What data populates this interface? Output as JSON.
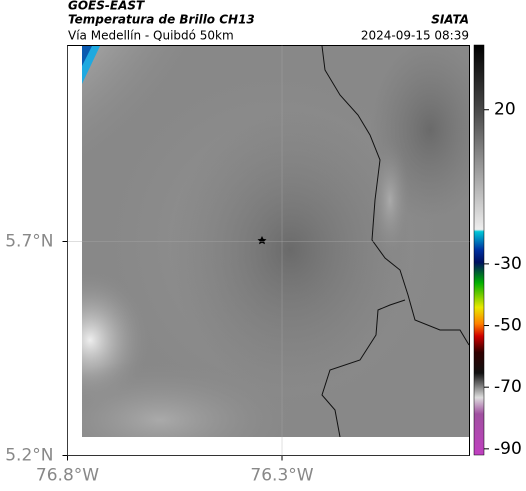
{
  "header": {
    "title": "GOES-EAST",
    "subtitle": "Temperatura de Brillo CH13",
    "route": "Vía Medellín - Quibdó 50km",
    "source": "SIATA",
    "timestamp": "2024-09-15 08:39"
  },
  "map": {
    "xlim": [
      -76.8,
      -75.863
    ],
    "ylim": [
      5.2,
      6.158
    ],
    "xticks": [
      {
        "value": -76.8,
        "label": "76.8°W"
      },
      {
        "value": -76.3,
        "label": "76.3°W"
      }
    ],
    "yticks": [
      {
        "value": 5.2,
        "label": "5.2°N"
      },
      {
        "value": 5.7,
        "label": "5.7°N"
      }
    ],
    "grid": true
  },
  "colorbar": {
    "clim": [
      -92,
      41
    ],
    "ticks": [
      20,
      -30,
      -50,
      -70,
      -90
    ]
  }
}
